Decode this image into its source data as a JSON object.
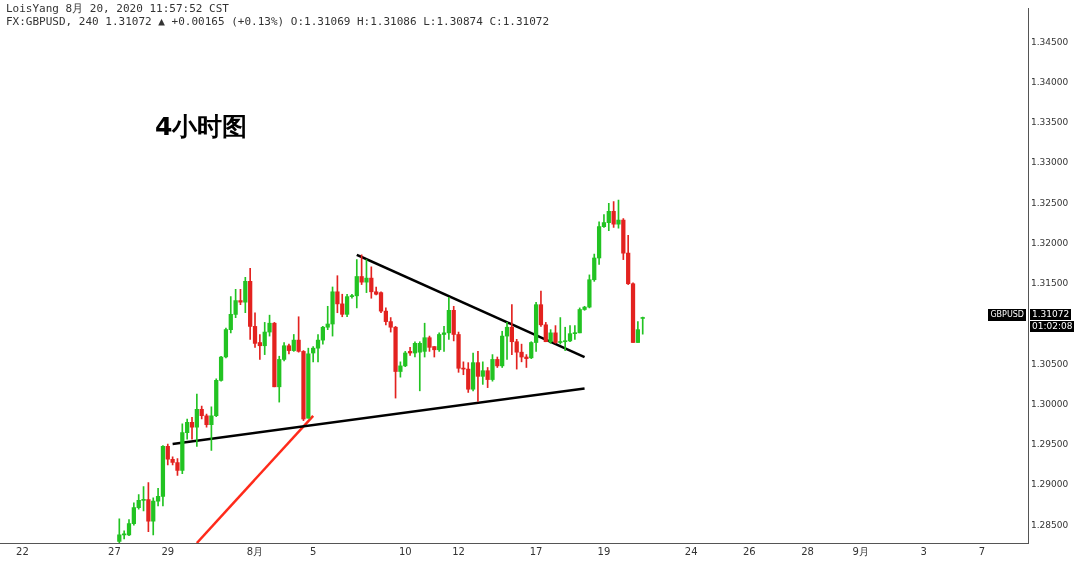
{
  "chart_data": {
    "type": "candlestick",
    "annotations": [
      "LoisYang 8月 20, 2020 11:57:52 CST",
      "FX:GBPUSD, 240 1.31072 ▲ +0.00165 (+0.13%) O:1.31069 H:1.31086 L:1.30874 C:1.31072",
      "4小时图",
      "GBPUSD",
      "1.31072",
      "01:02:08"
    ],
    "categories": [
      null,
      null,
      null,
      null,
      "22",
      null,
      null,
      null,
      null,
      null,
      null,
      null,
      null,
      null,
      null,
      null,
      null,
      null,
      null,
      null,
      null,
      null,
      null,
      "27",
      null,
      null,
      null,
      null,
      null,
      null,
      null,
      null,
      null,
      null,
      "29",
      null,
      null,
      null,
      null,
      null,
      null,
      null,
      null,
      null,
      null,
      null,
      null,
      null,
      null,
      null,
      null,
      null,
      "8月",
      null,
      null,
      null,
      null,
      null,
      null,
      null,
      null,
      null,
      null,
      null,
      "5",
      null,
      null,
      null,
      null,
      null,
      null,
      null,
      null,
      null,
      null,
      null,
      null,
      null,
      null,
      null,
      null,
      null,
      null,
      "10",
      null,
      null,
      null,
      null,
      null,
      null,
      null,
      null,
      null,
      null,
      "12",
      null,
      null,
      null,
      null,
      null,
      null,
      null,
      null,
      null,
      null,
      null,
      null,
      null,
      null,
      null,
      "17",
      null,
      null,
      null,
      null,
      null,
      null,
      null,
      null,
      null,
      null,
      null,
      null,
      null,
      "19",
      null,
      null,
      null,
      null,
      null,
      null,
      null,
      null,
      null,
      null,
      null,
      null,
      null,
      null,
      null,
      null,
      null,
      "24",
      null,
      null,
      null,
      null,
      null,
      null,
      null,
      null,
      null,
      null,
      null,
      "26",
      null,
      null,
      null,
      null,
      null,
      null,
      null,
      null,
      null,
      null,
      null,
      "28",
      null,
      null,
      null,
      null,
      null,
      null,
      null,
      null,
      null,
      null,
      "9月",
      null,
      null,
      null,
      null,
      null,
      null,
      null,
      null,
      null,
      null,
      null,
      null,
      "3",
      null,
      null,
      null,
      null,
      null,
      null,
      null,
      null,
      null,
      null,
      null,
      "7",
      null,
      null,
      null,
      null,
      null,
      null,
      null,
      null,
      null
    ],
    "ohlc": [
      null,
      null,
      null,
      null,
      null,
      null,
      null,
      null,
      null,
      null,
      null,
      null,
      null,
      null,
      null,
      null,
      null,
      null,
      null,
      null,
      null,
      null,
      null,
      null,
      [
        1.283,
        1.2858,
        1.2828,
        1.2838
      ],
      [
        1.2838,
        1.2843,
        1.2833,
        1.2839
      ],
      [
        1.2838,
        1.2857,
        1.2837,
        1.2852
      ],
      [
        1.2852,
        1.2878,
        1.285,
        1.2872
      ],
      [
        1.2872,
        1.2888,
        1.287,
        1.2881
      ],
      [
        1.2881,
        1.2898,
        1.2868,
        1.2882
      ],
      [
        1.2882,
        1.2903,
        1.2842,
        1.2855
      ],
      [
        1.2855,
        1.2884,
        1.2838,
        1.288
      ],
      [
        1.288,
        1.2896,
        1.2874,
        1.2886
      ],
      [
        1.2886,
        1.2949,
        1.2874,
        1.2948
      ],
      [
        1.2948,
        1.2951,
        1.2925,
        1.2932
      ],
      [
        1.2932,
        1.2935,
        1.2925,
        1.2928
      ],
      [
        1.2928,
        1.2933,
        1.2912,
        1.2918
      ],
      [
        1.2918,
        1.2976,
        1.2914,
        1.2965
      ],
      [
        1.2965,
        1.2982,
        1.2957,
        1.2978
      ],
      [
        1.2978,
        1.2984,
        1.2957,
        1.2972
      ],
      [
        1.2972,
        1.3013,
        1.2948,
        1.2994
      ],
      [
        1.2994,
        1.2998,
        1.2982,
        1.2986
      ],
      [
        1.2986,
        1.2988,
        1.2972,
        1.2975
      ],
      [
        1.2975,
        1.2997,
        1.2943,
        1.2986
      ],
      [
        1.2986,
        1.3032,
        1.2985,
        1.303
      ],
      [
        1.303,
        1.306,
        1.3029,
        1.3059
      ],
      [
        1.3059,
        1.3095,
        1.3058,
        1.3093
      ],
      [
        1.3093,
        1.3134,
        1.3089,
        1.3112
      ],
      [
        1.3112,
        1.3143,
        1.3108,
        1.3129
      ],
      [
        1.3129,
        1.3143,
        1.3124,
        1.3127
      ],
      [
        1.3127,
        1.3158,
        1.3114,
        1.3153
      ],
      [
        1.3153,
        1.3169,
        1.3081,
        1.3097
      ],
      [
        1.3097,
        1.3114,
        1.3071,
        1.3076
      ],
      [
        1.3077,
        1.3087,
        1.3056,
        1.3073
      ],
      [
        1.3073,
        1.3102,
        1.3062,
        1.309
      ],
      [
        1.309,
        1.3111,
        1.3085,
        1.3101
      ],
      [
        1.3101,
        1.3102,
        1.3022,
        1.3022
      ],
      [
        1.3022,
        1.306,
        1.3003,
        1.3056
      ],
      [
        1.3056,
        1.3077,
        1.3054,
        1.3073
      ],
      [
        1.3073,
        1.3075,
        1.3063,
        1.3067
      ],
      [
        1.3067,
        1.3087,
        1.3066,
        1.308
      ],
      [
        1.308,
        1.3109,
        1.3065,
        1.3066
      ],
      [
        1.3066,
        1.3067,
        1.298,
        1.2982
      ],
      [
        1.2983,
        1.307,
        1.2983,
        1.3063
      ],
      [
        1.3064,
        1.3072,
        1.3053,
        1.307
      ],
      [
        1.307,
        1.3087,
        1.3053,
        1.308
      ],
      [
        1.308,
        1.3097,
        1.3075,
        1.3096
      ],
      [
        1.3096,
        1.3122,
        1.3093,
        1.31
      ],
      [
        1.31,
        1.3146,
        1.3085,
        1.314
      ],
      [
        1.314,
        1.316,
        1.3114,
        1.3125
      ],
      [
        1.3125,
        1.3137,
        1.3109,
        1.3112
      ],
      [
        1.3112,
        1.3137,
        1.3109,
        1.3134
      ],
      [
        1.3134,
        1.3137,
        1.3132,
        1.3135
      ],
      [
        1.3135,
        1.318,
        1.312,
        1.3159
      ],
      [
        1.3159,
        1.3186,
        1.3149,
        1.3152
      ],
      [
        1.3152,
        1.318,
        1.3139,
        1.3157
      ],
      [
        1.3157,
        1.3171,
        1.3132,
        1.314
      ],
      [
        1.314,
        1.3146,
        1.3136,
        1.3137
      ],
      [
        1.3139,
        1.314,
        1.3114,
        1.3116
      ],
      [
        1.3116,
        1.312,
        1.3099,
        1.3103
      ],
      [
        1.3103,
        1.3108,
        1.309,
        1.3096
      ],
      [
        1.3096,
        1.3097,
        1.3008,
        1.3041
      ],
      [
        1.3041,
        1.3053,
        1.3034,
        1.3048
      ],
      [
        1.3048,
        1.3066,
        1.3047,
        1.3064
      ],
      [
        1.3066,
        1.3071,
        1.3061,
        1.3064
      ],
      [
        1.3064,
        1.3078,
        1.3059,
        1.3076
      ],
      [
        1.3065,
        1.3078,
        1.3017,
        1.3076
      ],
      [
        1.3066,
        1.3101,
        1.3059,
        1.3083
      ],
      [
        1.3083,
        1.3085,
        1.3066,
        1.3071
      ],
      [
        1.3072,
        1.3072,
        1.3059,
        1.3068
      ],
      [
        1.3068,
        1.3089,
        1.3066,
        1.3087
      ],
      [
        1.3087,
        1.3097,
        1.3066,
        1.3089
      ],
      [
        1.3089,
        1.3133,
        1.3081,
        1.3117
      ],
      [
        1.3117,
        1.3122,
        1.3079,
        1.3087
      ],
      [
        1.3087,
        1.309,
        1.304,
        1.3045
      ],
      [
        1.3045,
        1.3053,
        1.3037,
        1.3044
      ],
      [
        1.3044,
        1.3052,
        1.3015,
        1.3019
      ],
      [
        1.3019,
        1.3064,
        1.3017,
        1.3052
      ],
      [
        1.3052,
        1.3066,
        1.3004,
        1.3035
      ],
      [
        1.3035,
        1.3053,
        1.3025,
        1.3042
      ],
      [
        1.3042,
        1.3046,
        1.3021,
        1.3031
      ],
      [
        1.3031,
        1.3062,
        1.3029,
        1.3056
      ],
      [
        1.3056,
        1.3059,
        1.3046,
        1.3048
      ],
      [
        1.3048,
        1.3091,
        1.3046,
        1.3085
      ],
      [
        1.3085,
        1.3102,
        1.3056,
        1.3096
      ],
      [
        1.3096,
        1.3124,
        1.3062,
        1.3078
      ],
      [
        1.3078,
        1.3081,
        1.3044,
        1.3065
      ],
      [
        1.3065,
        1.3075,
        1.3053,
        1.3059
      ],
      [
        1.3059,
        1.3062,
        1.3046,
        1.3057
      ],
      [
        1.3058,
        1.3078,
        1.3057,
        1.3077
      ],
      [
        1.3077,
        1.3127,
        1.3066,
        1.3124
      ],
      [
        1.3124,
        1.3141,
        1.3097,
        1.3099
      ],
      [
        1.3099,
        1.3102,
        1.3078,
        1.3078
      ],
      [
        1.3078,
        1.3093,
        1.3076,
        1.3089
      ],
      [
        1.3089,
        1.3098,
        1.3076,
        1.3077
      ],
      [
        1.3077,
        1.3108,
        1.3075,
        1.3078
      ],
      [
        1.3078,
        1.3096,
        1.3067,
        1.3079
      ],
      [
        1.3079,
        1.3098,
        1.3078,
        1.3088
      ],
      [
        1.3088,
        1.3098,
        1.3081,
        1.3089
      ],
      [
        1.3089,
        1.312,
        1.3089,
        1.3118
      ],
      [
        1.3118,
        1.3122,
        1.3117,
        1.3121
      ],
      [
        1.3121,
        1.3161,
        1.312,
        1.3155
      ],
      [
        1.3155,
        1.3187,
        1.3153,
        1.3182
      ],
      [
        1.3182,
        1.3227,
        1.3174,
        1.3221
      ],
      [
        1.3221,
        1.3236,
        1.322,
        1.3226
      ],
      [
        1.3226,
        1.325,
        1.3216,
        1.324
      ],
      [
        1.324,
        1.3252,
        1.322,
        1.3224
      ],
      [
        1.3224,
        1.3254,
        1.3219,
        1.3229
      ],
      [
        1.3229,
        1.3231,
        1.318,
        1.3188
      ],
      [
        1.3188,
        1.321,
        1.3149,
        1.315
      ],
      [
        1.315,
        1.3151,
        1.3077,
        1.3077
      ],
      [
        1.3077,
        1.3103,
        1.3077,
        1.3093
      ],
      [
        1.31069,
        1.31086,
        1.30874,
        1.31072
      ],
      null,
      null,
      null,
      null,
      null,
      null,
      null,
      null,
      null,
      null,
      null,
      null,
      null,
      null,
      null,
      null,
      null,
      null,
      null,
      null,
      null,
      null,
      null,
      null,
      null,
      null,
      null,
      null,
      null,
      null,
      null,
      null,
      null,
      null,
      null,
      null,
      null,
      null,
      null,
      null,
      null,
      null,
      null,
      null,
      null,
      null,
      null,
      null,
      null,
      null,
      null,
      null,
      null,
      null,
      null,
      null,
      null,
      null,
      null,
      null,
      null,
      null,
      null,
      null,
      null,
      null,
      null,
      null,
      null,
      null,
      null,
      null,
      null,
      null,
      null,
      null,
      null,
      null,
      null
    ],
    "colors": [
      null,
      null,
      null,
      null,
      null,
      null,
      null,
      null,
      null,
      null,
      null,
      null,
      null,
      null,
      null,
      null,
      null,
      null,
      null,
      null,
      null,
      null,
      null,
      null,
      "#22c322",
      "#22c322",
      "#22c322",
      "#22c322",
      "#22c322",
      "#22c322",
      "#e3221f",
      "#22c322",
      "#22c322",
      "#22c322",
      "#e3221f",
      "#e3221f",
      "#e3221f",
      "#22c322",
      "#22c322",
      "#e3221f",
      "#22c322",
      "#e3221f",
      "#e3221f",
      "#22c322",
      "#22c322",
      "#22c322",
      "#22c322",
      "#22c322",
      "#22c322",
      "#e3221f",
      "#22c322",
      "#e3221f",
      "#e3221f",
      "#e3221f",
      "#22c322",
      "#22c322",
      "#e3221f",
      "#22c322",
      "#22c322",
      "#e3221f",
      "#22c322",
      "#e3221f",
      "#e3221f",
      "#22c322",
      "#22c322",
      "#22c322",
      "#22c322",
      "#22c322",
      "#22c322",
      "#e3221f",
      "#e3221f",
      "#22c322",
      "#22c322",
      "#22c322",
      "#e3221f",
      "#22c322",
      "#e3221f",
      "#e3221f",
      "#e3221f",
      "#e3221f",
      "#e3221f",
      "#e3221f",
      "#22c322",
      "#22c322",
      "#e3221f",
      "#22c322",
      "#22c322",
      "#22c322",
      "#e3221f",
      "#e3221f",
      "#22c322",
      "#22c322",
      "#22c322",
      "#e3221f",
      "#e3221f",
      "#e3221f",
      "#e3221f",
      "#22c322",
      "#e3221f",
      "#22c322",
      "#e3221f",
      "#22c322",
      "#e3221f",
      "#22c322",
      "#22c322",
      "#e3221f",
      "#e3221f",
      "#e3221f",
      "#e3221f",
      "#22c322",
      "#22c322",
      "#e3221f",
      "#e3221f",
      "#22c322",
      "#e3221f",
      "#22c322",
      "#22c322",
      "#22c322",
      "#22c322",
      "#22c322",
      "#22c322",
      "#22c322",
      "#22c322",
      "#22c322",
      "#22c322",
      "#22c322",
      "#e3221f",
      "#22c322",
      "#e3221f",
      "#e3221f",
      "#e3221f",
      "#22c322",
      "#22c322",
      null,
      null,
      null,
      null,
      null,
      null,
      null,
      null,
      null,
      null,
      null,
      null,
      null,
      null,
      null,
      null,
      null,
      null,
      null,
      null,
      null,
      null,
      null,
      null,
      null,
      null,
      null,
      null,
      null,
      null,
      null,
      null,
      null,
      null,
      null,
      null,
      null,
      null,
      null,
      null,
      null,
      null,
      null,
      null,
      null,
      null,
      null,
      null,
      null,
      null,
      null,
      null,
      null,
      null,
      null,
      null,
      null,
      null,
      null,
      null,
      null,
      null,
      null,
      null,
      null,
      null,
      null,
      null,
      null,
      null,
      null,
      null,
      null,
      null,
      null,
      null,
      null,
      null,
      null
    ],
    "series": [
      {
        "type": "line",
        "color": "#000000",
        "values": [
          null,
          null,
          null,
          null,
          null,
          null,
          null,
          null,
          null,
          null,
          null,
          null,
          null,
          null,
          null,
          null,
          null,
          null,
          null,
          null,
          null,
          null,
          null,
          null,
          null,
          null,
          null,
          null,
          null,
          null,
          null,
          null,
          null,
          null,
          null,
          null,
          null,
          null,
          null,
          null,
          null,
          null,
          null,
          null,
          null,
          null,
          null,
          null,
          null,
          null,
          null,
          null,
          null,
          null,
          null,
          null,
          null,
          null,
          null,
          null,
          null,
          null,
          null,
          null,
          null,
          null,
          null,
          null,
          null,
          null,
          null,
          null,
          null,
          1.3186,
          null,
          null,
          null,
          null,
          null,
          null,
          null,
          null,
          null,
          null,
          null,
          null,
          null,
          null,
          null,
          null,
          null,
          null,
          null,
          null,
          null,
          null,
          null,
          null,
          null,
          null,
          null,
          null,
          null,
          null,
          null,
          null,
          null,
          null,
          null,
          null,
          null,
          null,
          null,
          null,
          null,
          null,
          null,
          null,
          null,
          null,
          1.3059,
          null,
          null,
          null,
          null,
          null,
          null,
          null,
          null,
          null,
          null,
          null,
          null,
          null,
          null,
          null,
          null,
          null,
          null,
          null,
          null,
          null,
          null,
          null,
          null,
          null,
          null,
          null,
          null,
          null,
          null,
          null,
          null,
          null,
          null,
          null,
          null,
          null,
          null,
          null,
          null,
          null,
          null,
          null,
          null,
          null,
          null,
          null,
          null,
          null,
          null,
          null,
          null,
          null,
          null,
          null,
          null,
          null,
          null,
          null,
          null,
          null,
          null,
          null,
          null,
          null,
          null,
          null,
          null,
          null,
          null,
          null,
          null,
          null,
          null,
          null,
          null,
          null,
          null,
          null,
          null,
          null,
          null,
          null,
          null,
          null,
          null,
          null,
          null,
          null,
          null,
          null
        ]
      },
      {
        "type": "line",
        "color": "#000000",
        "values": [
          null,
          null,
          null,
          null,
          null,
          null,
          null,
          null,
          null,
          null,
          null,
          null,
          null,
          null,
          null,
          null,
          null,
          null,
          null,
          null,
          null,
          null,
          null,
          null,
          null,
          null,
          null,
          null,
          null,
          null,
          null,
          null,
          null,
          null,
          null,
          1.2951,
          null,
          null,
          null,
          null,
          null,
          null,
          null,
          null,
          null,
          null,
          null,
          null,
          null,
          null,
          null,
          null,
          null,
          null,
          null,
          null,
          null,
          null,
          null,
          null,
          null,
          null,
          null,
          null,
          null,
          null,
          null,
          null,
          null,
          null,
          null,
          null,
          null,
          null,
          null,
          null,
          null,
          null,
          null,
          null,
          null,
          null,
          null,
          null,
          null,
          null,
          null,
          null,
          null,
          null,
          null,
          null,
          null,
          null,
          null,
          null,
          null,
          null,
          null,
          null,
          null,
          null,
          null,
          null,
          null,
          null,
          null,
          null,
          null,
          null,
          null,
          null,
          null,
          null,
          null,
          null,
          null,
          null,
          null,
          null,
          1.302,
          null,
          null,
          null,
          null,
          null,
          null,
          null,
          null,
          null,
          null,
          null,
          null,
          null,
          null,
          null,
          null,
          null,
          null,
          null,
          null,
          null,
          null,
          null,
          null,
          null,
          null,
          null,
          null,
          null,
          null,
          null,
          null,
          null,
          null,
          null,
          null,
          null,
          null,
          null,
          null,
          null,
          null,
          null,
          null,
          null,
          null,
          null,
          null,
          null,
          null,
          null,
          null,
          null,
          null,
          null,
          null,
          null,
          null,
          null,
          null,
          null,
          null,
          null,
          null,
          null,
          null,
          null,
          null,
          null,
          null,
          null,
          null,
          null,
          null,
          null,
          null,
          null,
          null,
          null,
          null,
          null,
          null,
          null,
          null,
          null,
          null,
          null,
          null,
          null,
          null,
          null
        ]
      },
      {
        "type": "line",
        "color": "#ff2a1a",
        "values": [
          null,
          null,
          null,
          null,
          null,
          null,
          null,
          null,
          null,
          null,
          null,
          null,
          null,
          null,
          null,
          null,
          null,
          null,
          null,
          null,
          null,
          null,
          null,
          null,
          null,
          null,
          null,
          null,
          null,
          null,
          null,
          null,
          null,
          null,
          null,
          null,
          null,
          null,
          null,
          null,
          1.2828,
          null,
          null,
          null,
          null,
          null,
          null,
          null,
          null,
          null,
          null,
          null,
          null,
          null,
          null,
          null,
          null,
          null,
          null,
          null,
          null,
          null,
          null,
          null,
          1.2986,
          null,
          null,
          null,
          null,
          null,
          null,
          null,
          null,
          null,
          null,
          null,
          null,
          null,
          null,
          null,
          null,
          null,
          null,
          null,
          null,
          null,
          null,
          null,
          null,
          null,
          null,
          null,
          null,
          null,
          null,
          null,
          null,
          null,
          null,
          null,
          null,
          null,
          null,
          null,
          null,
          null,
          null,
          null,
          null,
          null,
          null,
          null,
          null,
          null,
          null,
          null,
          null,
          null,
          null,
          null,
          null,
          null,
          null,
          null,
          null,
          null,
          null,
          null,
          null,
          null,
          null,
          null,
          null,
          null,
          null,
          null,
          null,
          null,
          null,
          null,
          null,
          null,
          null,
          null,
          null,
          null,
          null,
          null,
          null,
          null,
          null,
          null,
          null,
          null,
          null,
          null,
          null,
          null,
          null,
          null,
          null,
          null,
          null,
          null,
          null,
          null,
          null,
          null,
          null,
          null,
          null,
          null,
          null,
          null,
          null,
          null,
          null,
          null,
          null,
          null,
          null,
          null,
          null,
          null,
          null,
          null,
          null,
          null,
          null,
          null,
          null,
          null,
          null,
          null,
          null,
          null,
          null,
          null,
          null,
          null,
          null,
          null,
          null,
          null,
          null,
          null,
          null,
          null,
          null,
          null,
          null,
          null
        ]
      }
    ],
    "ylim": [
      1.2828,
      1.3492
    ],
    "yticks": [
      {
        "value": 1.285,
        "label": "1.28500"
      },
      {
        "value": 1.29,
        "label": "1.29000"
      },
      {
        "value": 1.295,
        "label": "1.29500"
      },
      {
        "value": 1.3,
        "label": "1.30000"
      },
      {
        "value": 1.305,
        "label": "1.30500"
      },
      {
        "value": 1.315,
        "label": "1.31500"
      },
      {
        "value": 1.32,
        "label": "1.32000"
      },
      {
        "value": 1.325,
        "label": "1.32500"
      },
      {
        "value": 1.33,
        "label": "1.33000"
      },
      {
        "value": 1.335,
        "label": "1.33500"
      },
      {
        "value": 1.34,
        "label": "1.34000"
      },
      {
        "value": 1.345,
        "label": "1.34500"
      }
    ],
    "grid": false,
    "legend": false
  }
}
